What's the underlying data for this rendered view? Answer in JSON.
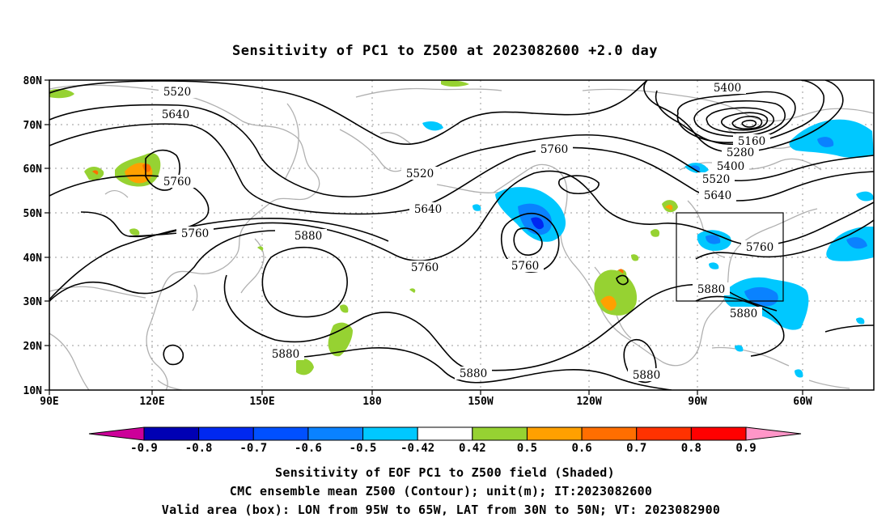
{
  "title": "Sensitivity of PC1 to Z500 at 2023082600 +2.0 day",
  "map": {
    "lat_ticks": [
      "80N",
      "70N",
      "60N",
      "50N",
      "40N",
      "30N",
      "20N",
      "10N"
    ],
    "lon_ticks": [
      "90E",
      "120E",
      "150E",
      "180",
      "150W",
      "120W",
      "90W",
      "60W"
    ],
    "grid": true,
    "valid_box": {
      "lon_from": "95W",
      "lon_to": "65W",
      "lat_from": "30N",
      "lat_to": "50N"
    },
    "contour_labels": [
      {
        "id": "c1",
        "text": "5520"
      },
      {
        "id": "c2",
        "text": "5640"
      },
      {
        "id": "c3",
        "text": "5760"
      },
      {
        "id": "c4",
        "text": "5760"
      },
      {
        "id": "c5",
        "text": "5880"
      },
      {
        "id": "c6",
        "text": "5520"
      },
      {
        "id": "c7",
        "text": "5640"
      },
      {
        "id": "c8",
        "text": "5760"
      },
      {
        "id": "c9",
        "text": "5760"
      },
      {
        "id": "c10",
        "text": "5760"
      },
      {
        "id": "c11",
        "text": "5400"
      },
      {
        "id": "c12",
        "text": "5160"
      },
      {
        "id": "c13",
        "text": "5280"
      },
      {
        "id": "c14",
        "text": "5400"
      },
      {
        "id": "c15",
        "text": "5520"
      },
      {
        "id": "c16",
        "text": "5640"
      },
      {
        "id": "c17",
        "text": "5760"
      },
      {
        "id": "c18",
        "text": "5880"
      },
      {
        "id": "c19",
        "text": "5880"
      },
      {
        "id": "c20",
        "text": "5880"
      },
      {
        "id": "c21",
        "text": "5880"
      },
      {
        "id": "c22",
        "text": "5880"
      }
    ]
  },
  "colorbar": {
    "labels": [
      "-0.9",
      "-0.8",
      "-0.7",
      "-0.6",
      "-0.5",
      "-0.42",
      "0.42",
      "0.5",
      "0.6",
      "0.7",
      "0.8",
      "0.9"
    ],
    "colors": [
      "#cc0099",
      "#0000b4",
      "#0028f0",
      "#0050ff",
      "#0a82ff",
      "#00c8ff",
      "#ffffff",
      "#96d232",
      "#ffa000",
      "#ff6e00",
      "#ff3200",
      "#ff0000",
      "#ff96c8"
    ]
  },
  "captions": [
    "Sensitivity of EOF PC1 to Z500 field (Shaded)",
    "CMC ensemble mean Z500 (Contour); unit(m); IT:2023082600",
    "Valid area (box): LON from 95W to 65W, LAT from 30N to 50N; VT: 2023082900"
  ]
}
